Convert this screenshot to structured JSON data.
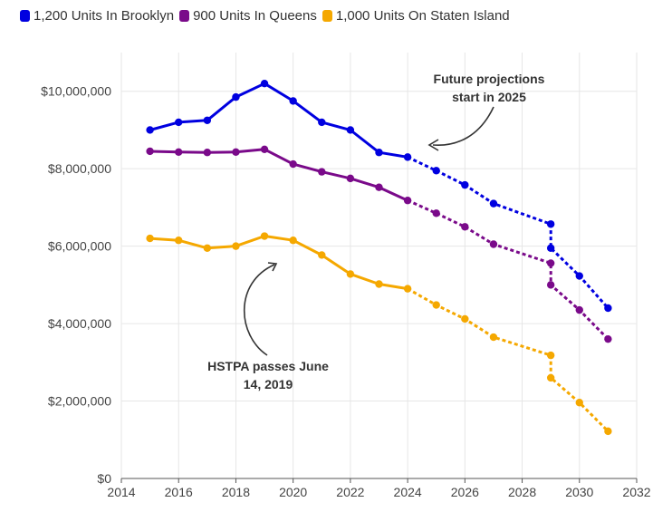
{
  "chart_data": {
    "type": "line",
    "legend_position": "top-left",
    "grid": true,
    "xlim": [
      2014,
      2032
    ],
    "ylim": [
      0,
      11000000
    ],
    "x_ticks": [
      2014,
      2016,
      2018,
      2020,
      2022,
      2024,
      2026,
      2028,
      2030,
      2032
    ],
    "y_ticks": [
      0,
      2000000,
      4000000,
      6000000,
      8000000,
      10000000
    ],
    "y_tick_labels": [
      "$0",
      "$2,000,000",
      "$4,000,000",
      "$6,000,000",
      "$8,000,000",
      "$10,000,000"
    ],
    "projection_start": 2024,
    "series": [
      {
        "name": "1,200 Units In Brooklyn",
        "color": "#0000e0",
        "points": [
          [
            2015,
            9000000
          ],
          [
            2016,
            9200000
          ],
          [
            2017,
            9250000
          ],
          [
            2018,
            9850000
          ],
          [
            2019,
            10200000
          ],
          [
            2020,
            9750000
          ],
          [
            2021,
            9200000
          ],
          [
            2022,
            9000000
          ],
          [
            2023,
            8420000
          ],
          [
            2024,
            8300000
          ],
          [
            2025,
            7950000
          ],
          [
            2026,
            7580000
          ],
          [
            2027,
            7100000
          ],
          [
            2029,
            6570000
          ],
          [
            2029,
            5950000
          ],
          [
            2030,
            5230000
          ],
          [
            2031,
            4400000
          ]
        ]
      },
      {
        "name": "900 Units In Queens",
        "color": "#7a0a8a",
        "points": [
          [
            2015,
            8450000
          ],
          [
            2016,
            8430000
          ],
          [
            2017,
            8420000
          ],
          [
            2018,
            8430000
          ],
          [
            2019,
            8500000
          ],
          [
            2020,
            8120000
          ],
          [
            2021,
            7920000
          ],
          [
            2022,
            7750000
          ],
          [
            2023,
            7520000
          ],
          [
            2024,
            7180000
          ],
          [
            2025,
            6850000
          ],
          [
            2026,
            6500000
          ],
          [
            2027,
            6050000
          ],
          [
            2029,
            5560000
          ],
          [
            2029,
            5000000
          ],
          [
            2030,
            4350000
          ],
          [
            2031,
            3600000
          ]
        ]
      },
      {
        "name": "1,000 Units On Staten Island",
        "color": "#f5a800",
        "points": [
          [
            2015,
            6200000
          ],
          [
            2016,
            6150000
          ],
          [
            2017,
            5950000
          ],
          [
            2018,
            6000000
          ],
          [
            2019,
            6260000
          ],
          [
            2020,
            6150000
          ],
          [
            2021,
            5770000
          ],
          [
            2022,
            5280000
          ],
          [
            2023,
            5020000
          ],
          [
            2024,
            4900000
          ],
          [
            2025,
            4480000
          ],
          [
            2026,
            4120000
          ],
          [
            2027,
            3650000
          ],
          [
            2029,
            3180000
          ],
          [
            2029,
            2600000
          ],
          [
            2030,
            1960000
          ],
          [
            2031,
            1220000
          ]
        ]
      }
    ],
    "annotations": [
      {
        "text_lines": [
          "Future projections",
          "start in 2025"
        ]
      },
      {
        "text_lines": [
          "HSTPA passes June",
          "14, 2019"
        ]
      }
    ]
  }
}
